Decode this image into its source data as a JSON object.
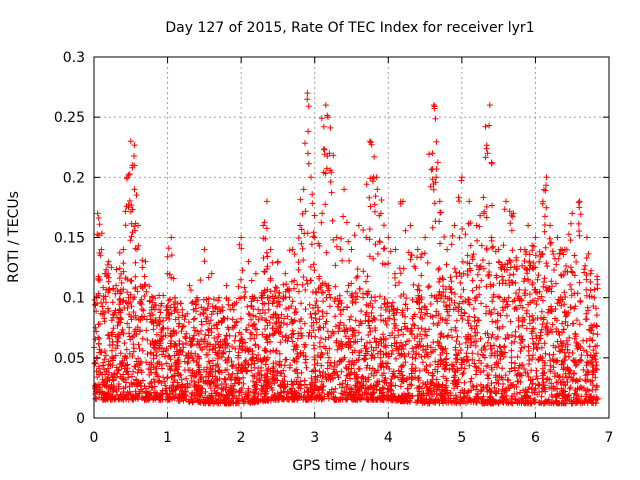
{
  "chart_data": {
    "type": "scatter",
    "title": "Day 127 of 2015, Rate Of TEC Index for receiver lyr1",
    "xlabel": "GPS time / hours",
    "ylabel": "ROTI / TECUs",
    "xlim": [
      0,
      7
    ],
    "ylim": [
      0,
      0.3
    ],
    "x_ticks": [
      0,
      1,
      2,
      3,
      4,
      5,
      6,
      7
    ],
    "x_tick_labels": [
      "0",
      "1",
      "2",
      "3",
      "4",
      "5",
      "6",
      "7"
    ],
    "y_ticks": [
      0,
      0.05,
      0.1,
      0.15,
      0.2,
      0.25,
      0.3
    ],
    "y_tick_labels": [
      "0",
      "0.05",
      "0.1",
      "0.15",
      "0.2",
      "0.25",
      "0.3"
    ],
    "grid": true,
    "marker": "+",
    "color": "#ff0000",
    "series": [
      {
        "name": "ROTI",
        "points": [
          [
            0.05,
            0.17
          ],
          [
            0.1,
            0.14
          ],
          [
            0.15,
            0.12
          ],
          [
            0.2,
            0.13
          ],
          [
            0.3,
            0.11
          ],
          [
            0.35,
            0.09
          ],
          [
            0.4,
            0.14
          ],
          [
            0.45,
            0.2
          ],
          [
            0.5,
            0.23
          ],
          [
            0.52,
            0.21
          ],
          [
            0.55,
            0.19
          ],
          [
            0.6,
            0.16
          ],
          [
            0.7,
            0.13
          ],
          [
            0.8,
            0.1
          ],
          [
            0.9,
            0.08
          ],
          [
            1.0,
            0.12
          ],
          [
            1.05,
            0.15
          ],
          [
            1.1,
            0.1
          ],
          [
            1.2,
            0.09
          ],
          [
            1.3,
            0.11
          ],
          [
            1.4,
            0.1
          ],
          [
            1.5,
            0.14
          ],
          [
            1.6,
            0.12
          ],
          [
            1.7,
            0.1
          ],
          [
            1.8,
            0.11
          ],
          [
            1.9,
            0.09
          ],
          [
            2.0,
            0.15
          ],
          [
            2.1,
            0.13
          ],
          [
            2.2,
            0.12
          ],
          [
            2.3,
            0.16
          ],
          [
            2.35,
            0.18
          ],
          [
            2.4,
            0.14
          ],
          [
            2.5,
            0.13
          ],
          [
            2.6,
            0.12
          ],
          [
            2.7,
            0.14
          ],
          [
            2.8,
            0.16
          ],
          [
            2.85,
            0.19
          ],
          [
            2.9,
            0.27
          ],
          [
            2.95,
            0.2
          ],
          [
            3.0,
            0.15
          ],
          [
            3.1,
            0.17
          ],
          [
            3.15,
            0.26
          ],
          [
            3.18,
            0.25
          ],
          [
            3.2,
            0.22
          ],
          [
            3.3,
            0.15
          ],
          [
            3.4,
            0.19
          ],
          [
            3.5,
            0.14
          ],
          [
            3.6,
            0.16
          ],
          [
            3.7,
            0.15
          ],
          [
            3.75,
            0.23
          ],
          [
            3.8,
            0.2
          ],
          [
            3.85,
            0.19
          ],
          [
            3.9,
            0.17
          ],
          [
            4.0,
            0.15
          ],
          [
            4.1,
            0.14
          ],
          [
            4.2,
            0.18
          ],
          [
            4.3,
            0.16
          ],
          [
            4.4,
            0.14
          ],
          [
            4.5,
            0.15
          ],
          [
            4.6,
            0.22
          ],
          [
            4.62,
            0.26
          ],
          [
            4.65,
            0.2
          ],
          [
            4.7,
            0.18
          ],
          [
            4.8,
            0.14
          ],
          [
            4.9,
            0.16
          ],
          [
            5.0,
            0.2
          ],
          [
            5.1,
            0.18
          ],
          [
            5.2,
            0.16
          ],
          [
            5.3,
            0.17
          ],
          [
            5.35,
            0.22
          ],
          [
            5.38,
            0.26
          ],
          [
            5.4,
            0.15
          ],
          [
            5.5,
            0.14
          ],
          [
            5.6,
            0.18
          ],
          [
            5.7,
            0.17
          ],
          [
            5.8,
            0.14
          ],
          [
            5.9,
            0.16
          ],
          [
            6.0,
            0.15
          ],
          [
            6.1,
            0.18
          ],
          [
            6.15,
            0.2
          ],
          [
            6.2,
            0.16
          ],
          [
            6.3,
            0.15
          ],
          [
            6.4,
            0.14
          ],
          [
            6.5,
            0.17
          ],
          [
            6.6,
            0.18
          ],
          [
            6.7,
            0.15
          ],
          [
            6.75,
            0.12
          ],
          [
            6.8,
            0.1
          ]
        ],
        "dense_band": {
          "x_range": [
            0,
            6.85
          ],
          "y_envelope_x": [
            0,
            0.5,
            1,
            1.5,
            2,
            2.5,
            3,
            3.5,
            4,
            4.5,
            5,
            5.5,
            6,
            6.5,
            6.85
          ],
          "y_low": [
            0.015,
            0.015,
            0.015,
            0.012,
            0.012,
            0.015,
            0.015,
            0.015,
            0.015,
            0.012,
            0.012,
            0.012,
            0.012,
            0.012,
            0.012
          ],
          "y_high": [
            0.13,
            0.12,
            0.1,
            0.1,
            0.1,
            0.11,
            0.12,
            0.11,
            0.1,
            0.11,
            0.13,
            0.13,
            0.14,
            0.14,
            0.12
          ],
          "count": 3600
        }
      }
    ]
  }
}
